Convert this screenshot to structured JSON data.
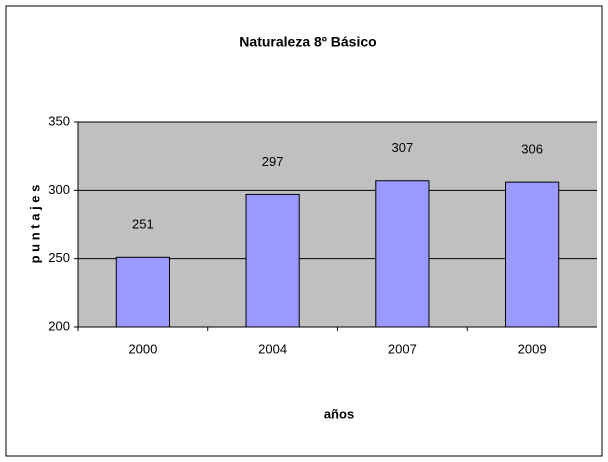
{
  "chart_data": {
    "type": "bar",
    "title": "Naturaleza 8º Básico",
    "x_label": "años",
    "y_label": "p u n t a j e s",
    "categories": [
      "2000",
      "2004",
      "2007",
      "2009"
    ],
    "values": [
      251,
      297,
      307,
      306
    ],
    "color": "#9999ff",
    "ylim": [
      200,
      350
    ],
    "yticks": [
      200,
      250,
      300,
      350
    ],
    "grid": true
  }
}
